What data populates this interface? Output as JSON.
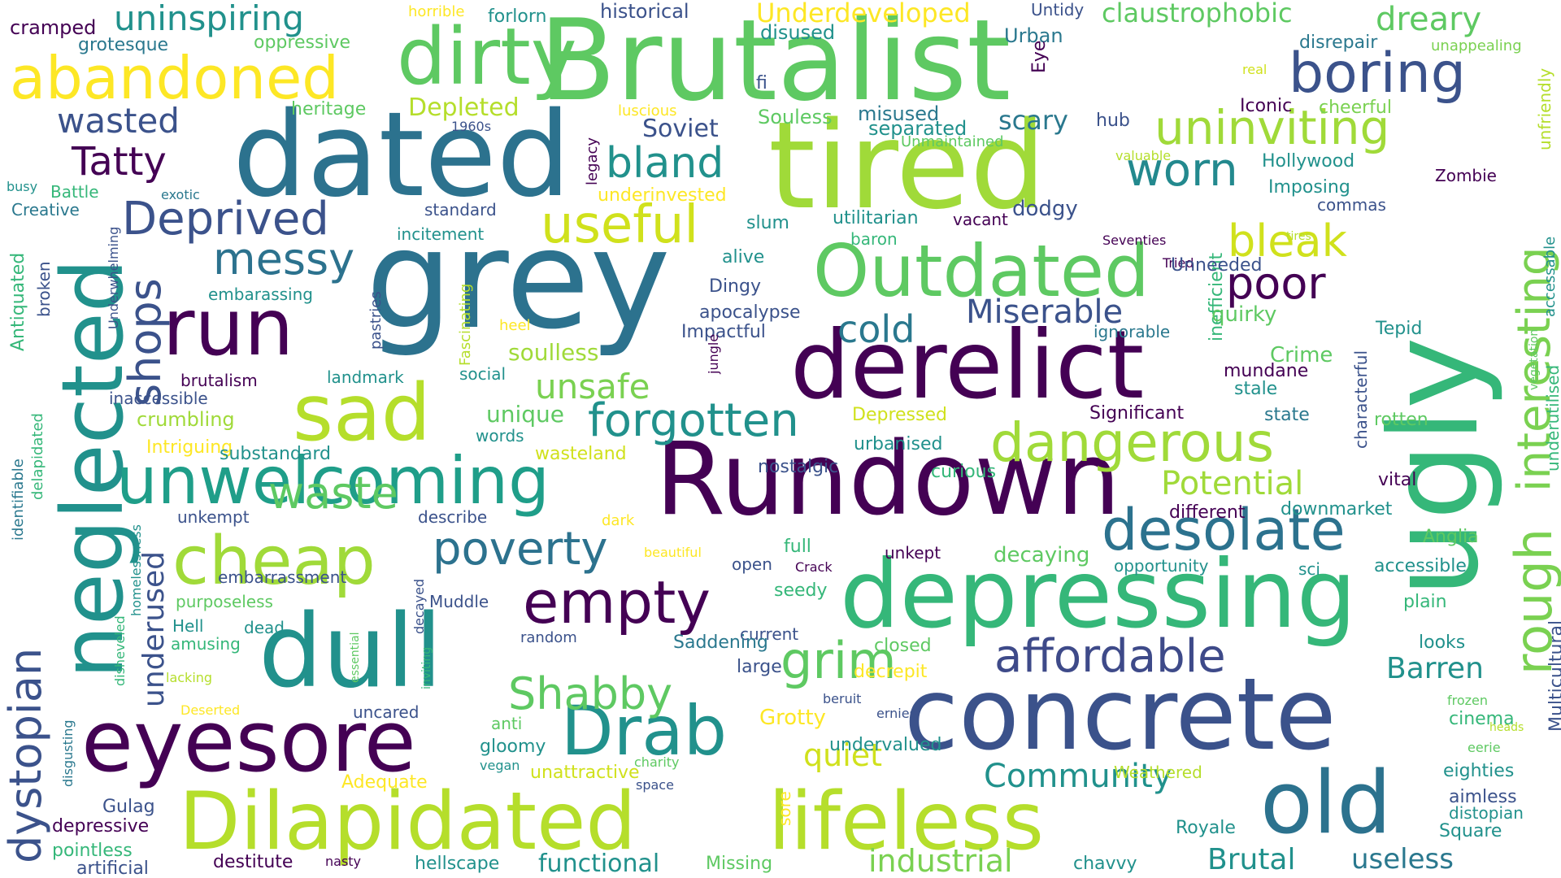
{
  "colors": {
    "background": "#ffffff",
    "palette_name": "viridis",
    "palette": [
      "#440154",
      "#3b528b",
      "#21918c",
      "#5ec962",
      "#fde725"
    ]
  },
  "words": [
    "Brutalist",
    "grey",
    "dated",
    "tired",
    "ugly",
    "Rundown",
    "derelict",
    "concrete",
    "depressing",
    "dull",
    "neglected",
    "Dilapidated",
    "lifeless",
    "eyesore",
    "old",
    "Outdated",
    "dirty",
    "abandoned",
    "boring",
    "run",
    "sad",
    "unwelcoming",
    "cheap",
    "empty",
    "desolate",
    "dangerous",
    "Drab",
    "affordable",
    "forgotten",
    "uninviting",
    "poverty",
    "grim",
    "Shabby",
    "useful",
    "bland",
    "rough",
    "interesting",
    "worn",
    "Deprived",
    "messy",
    "Tatty",
    "waste",
    "poor",
    "bleak",
    "dystopian",
    "shops",
    "Community",
    "unsafe",
    "wasted",
    "uninspiring",
    "cold",
    "Miserable",
    "Potential",
    "Barren",
    "Brutal",
    "useless",
    "industrial",
    "functional",
    "quiet",
    "underused",
    "unique",
    "soulless",
    "dreary",
    "claustrophobic",
    "Underdeveloped",
    "historical",
    "cramped",
    "grotesque",
    "oppressive",
    "horrible",
    "forlorn",
    "disused",
    "Urban",
    "Untidy",
    "Eye",
    "disrepair",
    "unappealing",
    "unfriendly",
    "fi",
    "real",
    "heritage",
    "Depleted",
    "luscious",
    "1960s",
    "legacy",
    "Soviet",
    "Souless",
    "misused",
    "separated",
    "Unmaintained",
    "scary",
    "hub",
    "Iconic",
    "cheerful",
    "valuable",
    "underinvested",
    "Hollywood",
    "Imposing",
    "Zombie",
    "accessable",
    "busy",
    "Battle",
    "exotic",
    "Creative",
    "standard",
    "incitement",
    "slum",
    "utilitarian",
    "baron",
    "vacant",
    "dodgy",
    "commas",
    "tires",
    "Seventies",
    "inefficient",
    "Antiquated",
    "broken",
    "Underwhelming",
    "pastries",
    "Fascinating",
    "heel",
    "alive",
    "Dingy",
    "apocalypse",
    "Impactful",
    "ignorable",
    "quirky",
    "Tried",
    "Unneeded",
    "Tepid",
    "vegetation",
    "underutilised",
    "embarassing",
    "brutalism",
    "landmark",
    "social",
    "jungle",
    "inaccessible",
    "crumbling",
    "Depressed",
    "Crime",
    "mundane",
    "stale",
    "Significant",
    "state",
    "characterful",
    "rotten",
    "identifiable",
    "delapidated",
    "Intriguing",
    "substandard",
    "words",
    "wasteland",
    "urbanised",
    "curious",
    "nostalgic",
    "vital",
    "unkempt",
    "describe",
    "dark",
    "different",
    "downmarket",
    "homelessness",
    "beautiful",
    "full",
    "unkept",
    "decaying",
    "Anglia",
    "open",
    "Crack",
    "opportunity",
    "sci",
    "accessible",
    "Multicultural",
    "embarrassment",
    "decayed",
    "Muddle",
    "purposeless",
    "seedy",
    "plain",
    "Hell",
    "dead",
    "current",
    "closed",
    "random",
    "essential",
    "inviting",
    "amusing",
    "Saddening",
    "decrepit",
    "looks",
    "disheveled",
    "lacking",
    "large",
    "Deserted",
    "beruit",
    "ernies",
    "frozen",
    "heads",
    "uncared",
    "anti",
    "Grotty",
    "cinema",
    "gloomy",
    "disgusting",
    "vegan",
    "charity",
    "eerie",
    "Adequate",
    "unattractive",
    "undervalued",
    "Weathered",
    "eighties",
    "Gulag",
    "space",
    "sore",
    "aimless",
    "distopian",
    "depressive",
    "Royale",
    "Square",
    "pointless",
    "hellscape",
    "Missing",
    "destitute",
    "nasty",
    "artificial",
    "chavvy"
  ]
}
